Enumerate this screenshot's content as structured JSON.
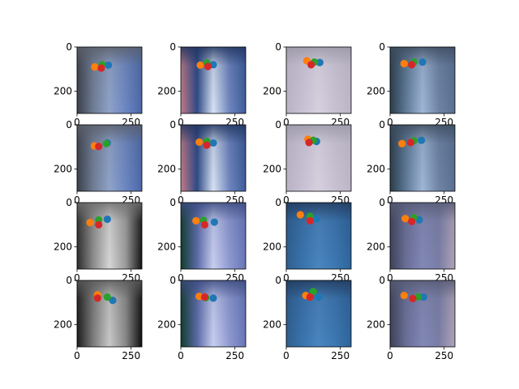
{
  "chart_data": {
    "type": "scatter",
    "layout": {
      "rows": 4,
      "cols": 4
    },
    "xlim": [
      0,
      300
    ],
    "ylim": [
      300,
      0
    ],
    "xticks": [
      0,
      250
    ],
    "yticks": [
      0,
      200
    ],
    "marker_colors": {
      "blue": "#1f77b4",
      "orange": "#ff7f0e",
      "green": "#2ca02c",
      "red": "#d62728"
    },
    "panels": [
      {
        "background": [
          "#3a3f4a",
          "#6f7c94",
          "#8fa3c9",
          "#6b86c2",
          "#4a67a8"
        ],
        "top_band": "#5a5f6a",
        "points": {
          "blue": [
            145,
            82
          ],
          "orange": [
            82,
            90
          ],
          "green": [
            115,
            80
          ],
          "red": [
            112,
            95
          ]
        }
      },
      {
        "background": [
          "#c47b86",
          "#2f4a86",
          "#d8e2f3",
          "#6f86be",
          "#3e5d9a"
        ],
        "top_band": "#20345f",
        "points": {
          "blue": [
            150,
            80
          ],
          "orange": [
            90,
            82
          ],
          "green": [
            120,
            72
          ],
          "red": [
            125,
            88
          ]
        }
      },
      {
        "background": [
          "#b9b3c4",
          "#c8c0d4",
          "#d6d0de",
          "#c7c1d2",
          "#bcb6c8"
        ],
        "top_band": "#9a97a6",
        "points": {
          "blue": [
            155,
            70
          ],
          "orange": [
            95,
            62
          ],
          "green": [
            130,
            68
          ],
          "red": [
            115,
            80
          ]
        }
      },
      {
        "background": [
          "#2b3c4a",
          "#5f7a98",
          "#9fb7d6",
          "#6f84a6",
          "#5b6f92"
        ],
        "top_band": "#3c4c5e",
        "points": {
          "blue": [
            150,
            68
          ],
          "orange": [
            65,
            75
          ],
          "green": [
            110,
            68
          ],
          "red": [
            100,
            80
          ]
        }
      },
      {
        "background": [
          "#3a3f4a",
          "#6f7c94",
          "#8fa3c9",
          "#6b86c2",
          "#4a67a8"
        ],
        "top_band": "#5a5f6a",
        "points": {
          "blue": [
            140,
            82
          ],
          "orange": [
            80,
            95
          ],
          "green": [
            135,
            85
          ],
          "red": [
            100,
            98
          ]
        }
      },
      {
        "background": [
          "#c47b86",
          "#2f4a86",
          "#d8e2f3",
          "#6f86be",
          "#3e5d9a"
        ],
        "top_band": "#20345f",
        "points": {
          "blue": [
            150,
            82
          ],
          "orange": [
            85,
            78
          ],
          "green": [
            120,
            75
          ],
          "red": [
            120,
            92
          ]
        }
      },
      {
        "background": [
          "#b9b3c4",
          "#c8c0d4",
          "#d6d0de",
          "#c7c1d2",
          "#bcb6c8"
        ],
        "top_band": "#9a97a6",
        "points": {
          "blue": [
            140,
            75
          ],
          "orange": [
            100,
            65
          ],
          "green": [
            125,
            70
          ],
          "red": [
            105,
            80
          ]
        }
      },
      {
        "background": [
          "#2b3c4a",
          "#5f7a98",
          "#9fb7d6",
          "#6f84a6",
          "#5b6f92"
        ],
        "top_band": "#3c4c5e",
        "points": {
          "blue": [
            145,
            70
          ],
          "orange": [
            55,
            85
          ],
          "green": [
            110,
            72
          ],
          "red": [
            95,
            80
          ]
        }
      },
      {
        "background": [
          "#2a2a2a",
          "#8c8c8c",
          "#d6d6d6",
          "#9a9a9a",
          "#111111"
        ],
        "top_band": "#6e6e6e",
        "points": {
          "blue": [
            140,
            75
          ],
          "orange": [
            60,
            90
          ],
          "green": [
            100,
            78
          ],
          "red": [
            100,
            100
          ]
        }
      },
      {
        "background": [
          "#0f3d2a",
          "#5b6aa6",
          "#c9cff0",
          "#8f9ad1",
          "#6a77b6"
        ],
        "top_band": "#3a4a7e",
        "points": {
          "blue": [
            155,
            88
          ],
          "orange": [
            70,
            82
          ],
          "green": [
            105,
            80
          ],
          "red": [
            110,
            100
          ]
        }
      },
      {
        "background": [
          "#2f5f8f",
          "#3a74ad",
          "#4a86c0",
          "#3d78b2",
          "#2e659c"
        ],
        "top_band": "#223a5c",
        "points": {
          "blue": [
            140,
            72
          ],
          "orange": [
            65,
            55
          ],
          "green": [
            110,
            62
          ],
          "red": [
            110,
            82
          ]
        }
      },
      {
        "background": [
          "#3c4156",
          "#6a6f98",
          "#8288b6",
          "#7a7ea6",
          "#b1a4b8"
        ],
        "top_band": "#565a74",
        "points": {
          "blue": [
            135,
            78
          ],
          "orange": [
            70,
            72
          ],
          "green": [
            110,
            68
          ],
          "red": [
            100,
            85
          ]
        }
      },
      {
        "background": [
          "#1a1a1a",
          "#7c7c7c",
          "#c8c8c8",
          "#888888",
          "#0d0d0d"
        ],
        "top_band": "#5a5a5a",
        "points": {
          "blue": [
            165,
            90
          ],
          "orange": [
            95,
            65
          ],
          "green": [
            140,
            75
          ],
          "red": [
            95,
            80
          ]
        }
      },
      {
        "background": [
          "#0f3d2a",
          "#5b6aa6",
          "#c9cff0",
          "#8f9ad1",
          "#6a77b6"
        ],
        "top_band": "#3a4a7e",
        "points": {
          "blue": [
            150,
            80
          ],
          "orange": [
            85,
            72
          ],
          "green": [
            115,
            78
          ],
          "red": [
            110,
            75
          ]
        }
      },
      {
        "background": [
          "#2f5f8f",
          "#3a74ad",
          "#4a86c0",
          "#3d78b2",
          "#2e659c"
        ],
        "top_band": "#223a5c",
        "points": {
          "blue": [
            150,
            75
          ],
          "orange": [
            90,
            68
          ],
          "green": [
            125,
            50
          ],
          "red": [
            110,
            75
          ]
        }
      },
      {
        "background": [
          "#3c4156",
          "#6a6f98",
          "#8288b6",
          "#7a7ea6",
          "#b1a4b8"
        ],
        "top_band": "#565a74",
        "points": {
          "blue": [
            155,
            75
          ],
          "orange": [
            65,
            68
          ],
          "green": [
            130,
            75
          ],
          "red": [
            105,
            82
          ]
        }
      }
    ]
  }
}
